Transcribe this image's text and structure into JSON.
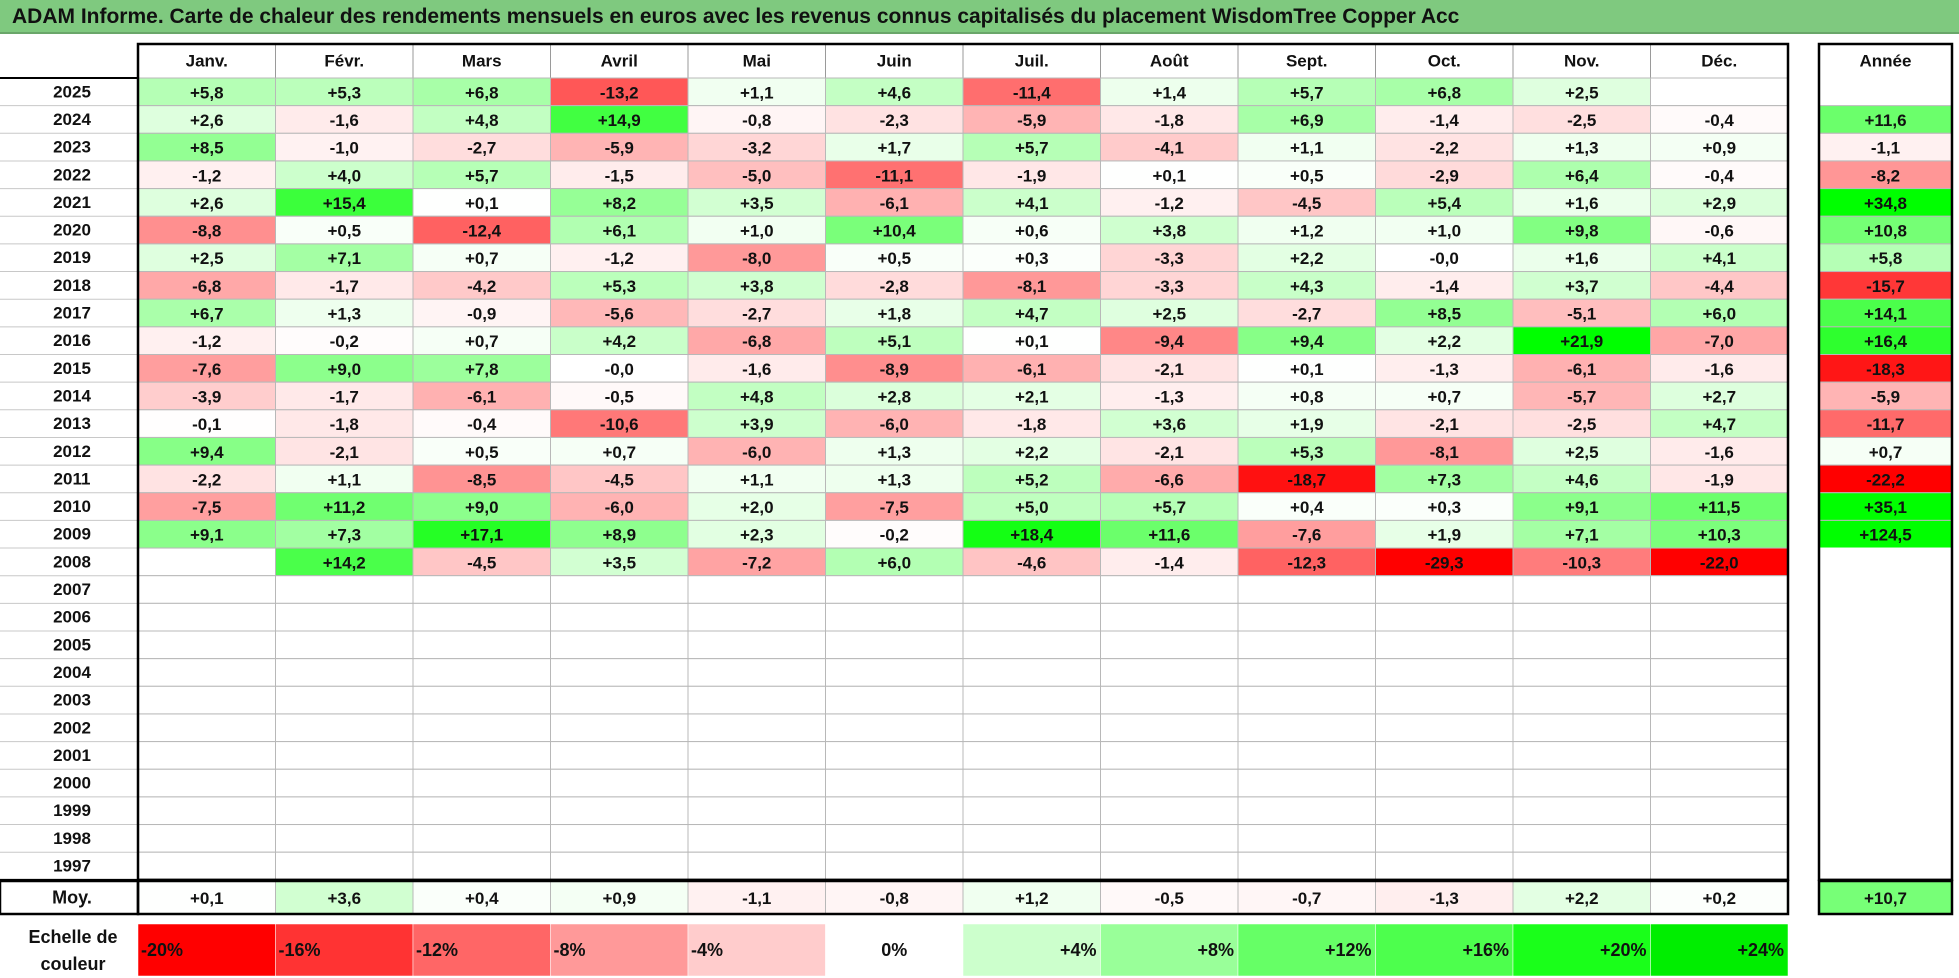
{
  "title": "ADAM Informe. Carte de chaleur des rendements mensuels en euros avec les revenus connus capitalisés du placement WisdomTree Copper Acc",
  "chart_data": {
    "type": "heatmap",
    "title": "ADAM Informe. Carte de chaleur des rendements mensuels en euros avec les revenus connus capitalisés du placement WisdomTree Copper Acc",
    "months": [
      "Janv.",
      "Févr.",
      "Mars",
      "Avril",
      "Mai",
      "Juin",
      "Juil.",
      "Août",
      "Sept.",
      "Oct.",
      "Nov.",
      "Déc."
    ],
    "year_header": "Année",
    "years": [
      "2025",
      "2024",
      "2023",
      "2022",
      "2021",
      "2020",
      "2019",
      "2018",
      "2017",
      "2016",
      "2015",
      "2014",
      "2013",
      "2012",
      "2011",
      "2010",
      "2009",
      "2008",
      "2007",
      "2006",
      "2005",
      "2004",
      "2003",
      "2002",
      "2001",
      "2000",
      "1999",
      "1998",
      "1997"
    ],
    "values": [
      [
        "+5,8",
        "+5,3",
        "+6,8",
        "-13,2",
        "+1,1",
        "+4,6",
        "-11,4",
        "+1,4",
        "+5,7",
        "+6,8",
        "+2,5",
        ""
      ],
      [
        "+2,6",
        "-1,6",
        "+4,8",
        "+14,9",
        "-0,8",
        "-2,3",
        "-5,9",
        "-1,8",
        "+6,9",
        "-1,4",
        "-2,5",
        "-0,4"
      ],
      [
        "+8,5",
        "-1,0",
        "-2,7",
        "-5,9",
        "-3,2",
        "+1,7",
        "+5,7",
        "-4,1",
        "+1,1",
        "-2,2",
        "+1,3",
        "+0,9"
      ],
      [
        "-1,2",
        "+4,0",
        "+5,7",
        "-1,5",
        "-5,0",
        "-11,1",
        "-1,9",
        "+0,1",
        "+0,5",
        "-2,9",
        "+6,4",
        "-0,4"
      ],
      [
        "+2,6",
        "+15,4",
        "+0,1",
        "+8,2",
        "+3,5",
        "-6,1",
        "+4,1",
        "-1,2",
        "-4,5",
        "+5,4",
        "+1,6",
        "+2,9"
      ],
      [
        "-8,8",
        "+0,5",
        "-12,4",
        "+6,1",
        "+1,0",
        "+10,4",
        "+0,6",
        "+3,8",
        "+1,2",
        "+1,0",
        "+9,8",
        "-0,6"
      ],
      [
        "+2,5",
        "+7,1",
        "+0,7",
        "-1,2",
        "-8,0",
        "+0,5",
        "+0,3",
        "-3,3",
        "+2,2",
        "-0,0",
        "+1,6",
        "+4,1"
      ],
      [
        "-6,8",
        "-1,7",
        "-4,2",
        "+5,3",
        "+3,8",
        "-2,8",
        "-8,1",
        "-3,3",
        "+4,3",
        "-1,4",
        "+3,7",
        "-4,4"
      ],
      [
        "+6,7",
        "+1,3",
        "-0,9",
        "-5,6",
        "-2,7",
        "+1,8",
        "+4,7",
        "+2,5",
        "-2,7",
        "+8,5",
        "-5,1",
        "+6,0"
      ],
      [
        "-1,2",
        "-0,2",
        "+0,7",
        "+4,2",
        "-6,8",
        "+5,1",
        "+0,1",
        "-9,4",
        "+9,4",
        "+2,2",
        "+21,9",
        "-7,0"
      ],
      [
        "-7,6",
        "+9,0",
        "+7,8",
        "-0,0",
        "-1,6",
        "-8,9",
        "-6,1",
        "-2,1",
        "+0,1",
        "-1,3",
        "-6,1",
        "-1,6"
      ],
      [
        "-3,9",
        "-1,7",
        "-6,1",
        "-0,5",
        "+4,8",
        "+2,8",
        "+2,1",
        "-1,3",
        "+0,8",
        "+0,7",
        "-5,7",
        "+2,7"
      ],
      [
        "-0,1",
        "-1,8",
        "-0,4",
        "-10,6",
        "+3,9",
        "-6,0",
        "-1,8",
        "+3,6",
        "+1,9",
        "-2,1",
        "-2,5",
        "+4,7"
      ],
      [
        "+9,4",
        "-2,1",
        "+0,5",
        "+0,7",
        "-6,0",
        "+1,3",
        "+2,2",
        "-2,1",
        "+5,3",
        "-8,1",
        "+2,5",
        "-1,6"
      ],
      [
        "-2,2",
        "+1,1",
        "-8,5",
        "-4,5",
        "+1,1",
        "+1,3",
        "+5,2",
        "-6,6",
        "-18,7",
        "+7,3",
        "+4,6",
        "-1,9"
      ],
      [
        "-7,5",
        "+11,2",
        "+9,0",
        "-6,0",
        "+2,0",
        "-7,5",
        "+5,0",
        "+5,7",
        "+0,4",
        "+0,3",
        "+9,1",
        "+11,5"
      ],
      [
        "+9,1",
        "+7,3",
        "+17,1",
        "+8,9",
        "+2,3",
        "-0,2",
        "+18,4",
        "+11,6",
        "-7,6",
        "+1,9",
        "+7,1",
        "+10,3"
      ],
      [
        "",
        "+14,2",
        "-4,5",
        "+3,5",
        "-7,2",
        "+6,0",
        "-4,6",
        "-1,4",
        "-12,3",
        "-29,3",
        "-10,3",
        "-22,0"
      ],
      [
        "",
        "",
        "",
        "",
        "",
        "",
        "",
        "",
        "",
        "",
        "",
        ""
      ],
      [
        "",
        "",
        "",
        "",
        "",
        "",
        "",
        "",
        "",
        "",
        "",
        ""
      ],
      [
        "",
        "",
        "",
        "",
        "",
        "",
        "",
        "",
        "",
        "",
        "",
        ""
      ],
      [
        "",
        "",
        "",
        "",
        "",
        "",
        "",
        "",
        "",
        "",
        "",
        ""
      ],
      [
        "",
        "",
        "",
        "",
        "",
        "",
        "",
        "",
        "",
        "",
        "",
        ""
      ],
      [
        "",
        "",
        "",
        "",
        "",
        "",
        "",
        "",
        "",
        "",
        "",
        ""
      ],
      [
        "",
        "",
        "",
        "",
        "",
        "",
        "",
        "",
        "",
        "",
        "",
        ""
      ],
      [
        "",
        "",
        "",
        "",
        "",
        "",
        "",
        "",
        "",
        "",
        "",
        ""
      ],
      [
        "",
        "",
        "",
        "",
        "",
        "",
        "",
        "",
        "",
        "",
        "",
        ""
      ],
      [
        "",
        "",
        "",
        "",
        "",
        "",
        "",
        "",
        "",
        "",
        "",
        ""
      ],
      [
        "",
        "",
        "",
        "",
        "",
        "",
        "",
        "",
        "",
        "",
        "",
        ""
      ]
    ],
    "annual": [
      "",
      "+11,6",
      "-1,1",
      "-8,2",
      "+34,8",
      "+10,8",
      "+5,8",
      "-15,7",
      "+14,1",
      "+16,4",
      "-18,3",
      "-5,9",
      "-11,7",
      "+0,7",
      "-22,2",
      "+35,1",
      "+124,5",
      "",
      "",
      "",
      "",
      "",
      "",
      "",
      "",
      "",
      "",
      "",
      ""
    ],
    "average_label": "Moy.",
    "averages": [
      "+0,1",
      "+3,6",
      "+0,4",
      "+0,9",
      "-1,1",
      "-0,8",
      "+1,2",
      "-0,5",
      "-0,7",
      "-1,3",
      "+2,2",
      "+0,2"
    ],
    "average_annual": "+10,7",
    "scale_label_line1": "Echelle de",
    "scale_label_line2": "couleur",
    "scale": [
      {
        "label": "-20%",
        "value": -20,
        "color": "#ff0000"
      },
      {
        "label": "-16%",
        "value": -16,
        "color": "#ff3333"
      },
      {
        "label": "-12%",
        "value": -12,
        "color": "#ff6666"
      },
      {
        "label": "-8%",
        "value": -8,
        "color": "#ff9999"
      },
      {
        "label": "-4%",
        "value": -4,
        "color": "#ffcccc"
      },
      {
        "label": "0%",
        "value": 0,
        "color": "#ffffff"
      },
      {
        "label": "+4%",
        "value": 4,
        "color": "#ccffcc"
      },
      {
        "label": "+8%",
        "value": 8,
        "color": "#99ff99"
      },
      {
        "label": "+12%",
        "value": 12,
        "color": "#66ff66"
      },
      {
        "label": "+16%",
        "value": 16,
        "color": "#4dff4d"
      },
      {
        "label": "+20%",
        "value": 20,
        "color": "#1aff1a"
      },
      {
        "label": "+24%",
        "value": 24,
        "color": "#00ee00"
      }
    ]
  }
}
